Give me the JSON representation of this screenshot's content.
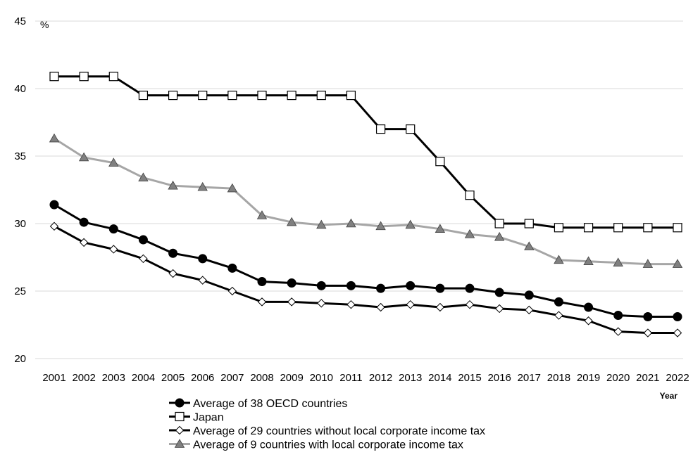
{
  "chart_data": {
    "type": "line",
    "title": "",
    "ylabel": "%",
    "xlabel": "Year",
    "ylim": [
      20,
      45
    ],
    "yticks": [
      20,
      25,
      30,
      35,
      40,
      45
    ],
    "grid": "horizontal",
    "legend_position": "bottom",
    "categories": [
      "2001",
      "2002",
      "2003",
      "2004",
      "2005",
      "2006",
      "2007",
      "2008",
      "2009",
      "2010",
      "2011",
      "2012",
      "2013",
      "2014",
      "2015",
      "2016",
      "2017",
      "2018",
      "2019",
      "2020",
      "2021",
      "2022"
    ],
    "series": [
      {
        "name": "Average of 38 OECD countries",
        "color": "#000000",
        "marker": "circle-filled",
        "values": [
          31.4,
          30.1,
          29.6,
          28.8,
          27.8,
          27.4,
          26.7,
          25.7,
          25.6,
          25.4,
          25.4,
          25.2,
          25.4,
          25.2,
          25.2,
          24.9,
          24.7,
          24.2,
          23.8,
          23.2,
          23.1,
          23.1
        ]
      },
      {
        "name": "Japan",
        "color": "#000000",
        "marker": "square-open",
        "values": [
          40.9,
          40.9,
          40.9,
          39.5,
          39.5,
          39.5,
          39.5,
          39.5,
          39.5,
          39.5,
          39.5,
          37.0,
          37.0,
          34.6,
          32.1,
          30.0,
          30.0,
          29.7,
          29.7,
          29.7,
          29.7,
          29.7
        ]
      },
      {
        "name": "Average of 29 countries without local corporate income tax",
        "color": "#000000",
        "marker": "diamond-open",
        "values": [
          29.8,
          28.6,
          28.1,
          27.4,
          26.3,
          25.8,
          25.0,
          24.2,
          24.2,
          24.1,
          24.0,
          23.8,
          24.0,
          23.8,
          24.0,
          23.7,
          23.6,
          23.2,
          22.8,
          22.0,
          21.9,
          21.9
        ]
      },
      {
        "name": "Average of 9 countries with local corporate income tax",
        "color": "#a6a6a6",
        "marker": "triangle-gray",
        "values": [
          36.3,
          34.9,
          34.5,
          33.4,
          32.8,
          32.7,
          32.6,
          30.6,
          30.1,
          29.9,
          30.0,
          29.8,
          29.9,
          29.6,
          29.2,
          29.0,
          28.3,
          27.3,
          27.2,
          27.1,
          27.0,
          27.0
        ]
      }
    ]
  }
}
